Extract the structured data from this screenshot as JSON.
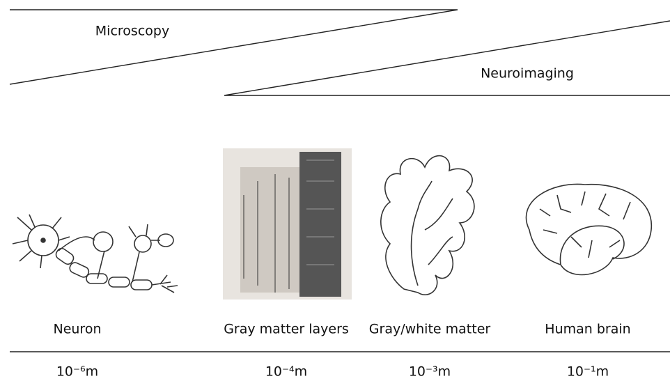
{
  "wedges": [
    {
      "label": "Microscopy"
    },
    {
      "label": "Neuroimaging"
    }
  ],
  "items": [
    {
      "label": "Neuron",
      "scale": "10⁻⁶m"
    },
    {
      "label": "Gray matter layers",
      "scale": "10⁻⁴m"
    },
    {
      "label": "Gray/white matter",
      "scale": "10⁻³m"
    },
    {
      "label": "Human brain",
      "scale": "10⁻¹m"
    }
  ]
}
